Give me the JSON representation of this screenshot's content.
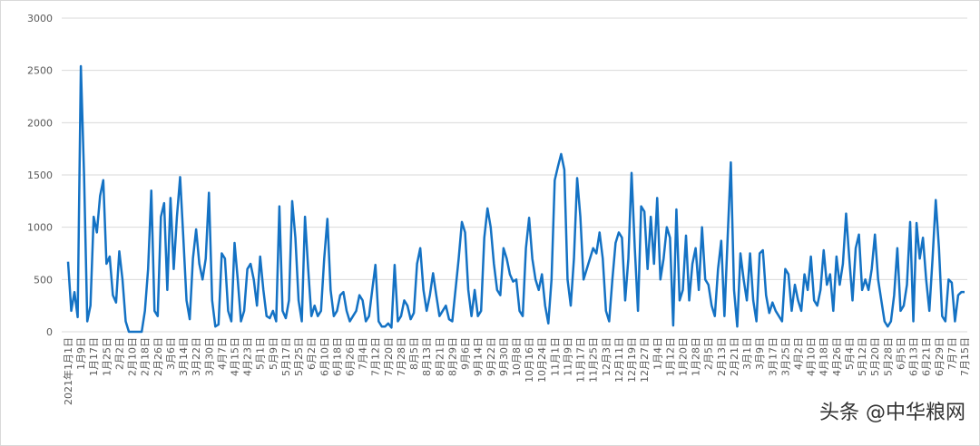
{
  "chart_data": {
    "type": "line",
    "categories": [
      "2021年1月1日",
      null,
      null,
      null,
      "1月9日",
      null,
      null,
      null,
      "1月17日",
      null,
      null,
      null,
      "1月25日",
      null,
      null,
      null,
      "2月2日",
      null,
      null,
      null,
      "2月10日",
      null,
      null,
      null,
      "2月18日",
      null,
      null,
      null,
      "2月26日",
      null,
      null,
      null,
      "3月6日",
      null,
      null,
      null,
      "3月14日",
      null,
      null,
      null,
      "3月22日",
      null,
      null,
      null,
      "3月30日",
      null,
      null,
      null,
      "4月7日",
      null,
      null,
      null,
      "4月15日",
      null,
      null,
      null,
      "4月23日",
      null,
      null,
      null,
      "5月1日",
      null,
      null,
      null,
      "5月9日",
      null,
      null,
      null,
      "5月17日",
      null,
      null,
      null,
      "5月25日",
      null,
      null,
      null,
      "6月2日",
      null,
      null,
      null,
      "6月10日",
      null,
      null,
      null,
      "6月18日",
      null,
      null,
      null,
      "6月26日",
      null,
      null,
      null,
      "7月4日",
      null,
      null,
      null,
      "7月12日",
      null,
      null,
      null,
      "7月20日",
      null,
      null,
      null,
      "7月28日",
      null,
      null,
      null,
      "8月5日",
      null,
      null,
      null,
      "8月13日",
      null,
      null,
      null,
      "8月21日",
      null,
      null,
      null,
      "8月29日",
      null,
      null,
      null,
      "9月6日",
      null,
      null,
      null,
      "9月14日",
      null,
      null,
      null,
      "9月22日",
      null,
      null,
      null,
      "9月30日",
      null,
      null,
      null,
      "10月8日",
      null,
      null,
      null,
      "10月16日",
      null,
      null,
      null,
      "10月24日",
      null,
      null,
      null,
      "11月1日",
      null,
      null,
      null,
      "11月9日",
      null,
      null,
      null,
      "11月17日",
      null,
      null,
      null,
      "11月25日",
      null,
      null,
      null,
      "12月3日",
      null,
      null,
      null,
      "12月11日",
      null,
      null,
      null,
      "12月19日",
      null,
      null,
      null,
      "12月27日",
      null,
      null,
      null,
      "1月4日",
      null,
      null,
      null,
      "1月12日",
      null,
      null,
      null,
      "1月20日",
      null,
      null,
      null,
      "1月28日",
      null,
      null,
      null,
      "2月5日",
      null,
      null,
      null,
      "2月13日",
      null,
      null,
      null,
      "2月21日",
      null,
      null,
      null,
      "3月1日",
      null,
      null,
      null,
      "3月9日",
      null,
      null,
      null,
      "3月17日",
      null,
      null,
      null,
      "3月25日",
      null,
      null,
      null,
      "4月2日",
      null,
      null,
      null,
      "4月10日",
      null,
      null,
      null,
      "4月18日",
      null,
      null,
      null,
      "4月26日",
      null,
      null,
      null,
      "5月4日",
      null,
      null,
      null,
      "5月12日",
      null,
      null,
      null,
      "5月20日",
      null,
      null,
      null,
      "5月28日",
      null,
      null,
      null,
      "6月5日",
      null,
      null,
      null,
      "6月13日",
      null,
      null,
      null,
      "6月21日",
      null,
      null,
      null,
      "6月29日",
      null,
      null,
      null,
      "7月7日",
      null,
      null,
      null,
      "7月15日"
    ],
    "values": [
      670,
      200,
      380,
      140,
      2540,
      1500,
      100,
      250,
      1100,
      950,
      1300,
      1450,
      650,
      720,
      350,
      280,
      770,
      500,
      100,
      0,
      0,
      0,
      0,
      0,
      200,
      600,
      1350,
      200,
      150,
      1100,
      1230,
      400,
      1280,
      600,
      1100,
      1480,
      900,
      300,
      120,
      700,
      980,
      650,
      500,
      700,
      1330,
      300,
      50,
      70,
      750,
      700,
      200,
      100,
      850,
      500,
      100,
      200,
      600,
      650,
      500,
      250,
      720,
      400,
      150,
      130,
      200,
      100,
      1200,
      200,
      130,
      300,
      1250,
      900,
      300,
      100,
      1100,
      600,
      150,
      250,
      150,
      200,
      700,
      1080,
      400,
      150,
      200,
      350,
      380,
      200,
      100,
      150,
      200,
      350,
      300,
      100,
      150,
      400,
      640,
      100,
      50,
      50,
      80,
      40,
      640,
      100,
      150,
      300,
      250,
      120,
      180,
      650,
      800,
      400,
      200,
      350,
      560,
      350,
      150,
      200,
      250,
      120,
      100,
      400,
      700,
      1050,
      950,
      400,
      150,
      400,
      150,
      200,
      900,
      1180,
      1000,
      650,
      400,
      350,
      800,
      700,
      550,
      480,
      500,
      200,
      150,
      800,
      1090,
      700,
      500,
      400,
      550,
      250,
      80,
      500,
      1450,
      1580,
      1700,
      1550,
      500,
      250,
      700,
      1470,
      1100,
      500,
      600,
      700,
      800,
      750,
      950,
      700,
      200,
      100,
      500,
      850,
      950,
      900,
      300,
      700,
      1520,
      800,
      200,
      1200,
      1150,
      600,
      1100,
      650,
      1280,
      500,
      700,
      1000,
      900,
      60,
      1170,
      300,
      400,
      920,
      300,
      650,
      800,
      400,
      1000,
      500,
      450,
      250,
      150,
      600,
      870,
      150,
      900,
      1620,
      400,
      50,
      750,
      500,
      300,
      750,
      300,
      100,
      750,
      780,
      350,
      180,
      280,
      200,
      150,
      100,
      600,
      550,
      200,
      450,
      300,
      200,
      550,
      400,
      720,
      300,
      250,
      400,
      780,
      450,
      550,
      200,
      720,
      450,
      650,
      1130,
      700,
      300,
      800,
      930,
      400,
      500,
      400,
      600,
      930,
      500,
      300,
      100,
      50,
      100,
      350,
      800,
      200,
      250,
      450,
      1050,
      100,
      1040,
      700,
      900,
      500,
      200,
      700,
      1260,
      800,
      150,
      100,
      500,
      470,
      100,
      350,
      380,
      380
    ],
    "color": "#1472c4",
    "ylim": [
      0,
      3000
    ],
    "yticks": [
      0,
      500,
      1000,
      1500,
      2000,
      2500,
      3000
    ],
    "grid": true,
    "watermark": "头条 @中华粮网"
  }
}
